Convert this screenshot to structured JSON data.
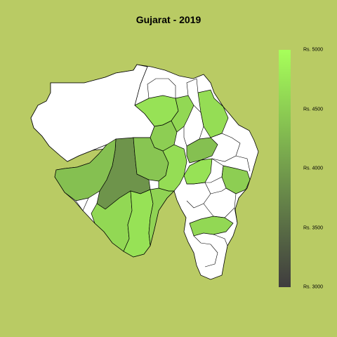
{
  "title": "Gujarat - 2019",
  "legend": {
    "ticks": [
      "Rs. 5000",
      "Rs. 4500",
      "Rs. 4000",
      "Rs. 3500",
      "Rs. 3000"
    ],
    "min": 3000,
    "max": 5000,
    "color_low": "#3f3c3e",
    "color_high": "#a7ff5a"
  },
  "colors": {
    "background": "#b9cb64",
    "no_data": "#ffffff",
    "border": "#000000"
  },
  "chart_data": {
    "type": "choropleth",
    "region": "Gujarat",
    "year": "2019",
    "districts_with_data": [
      {
        "value": 3900
      },
      {
        "value": 4350
      },
      {
        "value": 4600
      },
      {
        "value": 4700
      },
      {
        "value": 4550
      },
      {
        "value": 4400
      },
      {
        "value": 4650
      },
      {
        "value": 4700
      },
      {
        "value": 4500
      },
      {
        "value": 4600
      },
      {
        "value": 4650
      },
      {
        "value": 4350
      },
      {
        "value": 4700
      },
      {
        "value": 4500
      },
      {
        "value": 4600
      }
    ]
  }
}
